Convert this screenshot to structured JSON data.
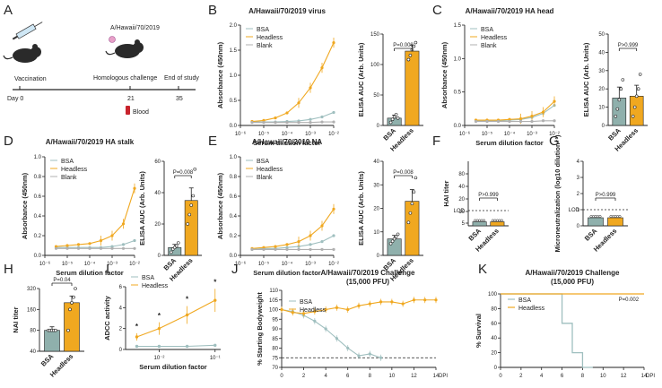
{
  "colors": {
    "headless": "#f0a820",
    "bsa": "#9fbfbf",
    "blank": "#b0b0b0",
    "bsa_bar": "#8fb0ac",
    "red": "#c8232c",
    "black": "#222222"
  },
  "panel_labels": [
    "A",
    "B",
    "C",
    "D",
    "E",
    "F",
    "G",
    "H",
    "I",
    "J",
    "K"
  ],
  "panel_a": {
    "strain": "A/Hawaii/70/2019",
    "steps": [
      "Vaccination",
      "Homologous challenge",
      "End of study"
    ],
    "days": [
      "Day 0",
      "21",
      "35"
    ],
    "blood": "Blood",
    "icons": [
      "syringe-icon",
      "mouse-icon",
      "mouse-icon",
      "blood-tube-icon"
    ]
  },
  "chart_data": [
    {
      "id": "B-line",
      "type": "line",
      "title": "A/Hawaii/70/2019 virus",
      "xlabel": "Serum dilution factor",
      "ylabel": "Absorbance (450nm)",
      "x_exp": [
        -6,
        -5,
        -4,
        -3,
        -2
      ],
      "x_ticks": [
        "10⁻⁶",
        "10⁻⁵",
        "10⁻⁴",
        "10⁻³",
        "10⁻²"
      ],
      "ylim": [
        0,
        2.0
      ],
      "yticks": [
        "0.0",
        "0.5",
        "1.0",
        "1.5",
        "2.0"
      ],
      "legend": [
        "BSA",
        "Headless",
        "Blank"
      ],
      "series": [
        {
          "name": "BSA",
          "x": [
            -5.5,
            -5.0,
            -4.5,
            -4.0,
            -3.5,
            -3.0,
            -2.5,
            -2.0
          ],
          "values": [
            0.07,
            0.07,
            0.07,
            0.08,
            0.09,
            0.12,
            0.17,
            0.26
          ]
        },
        {
          "name": "Headless",
          "x": [
            -5.5,
            -5.0,
            -4.5,
            -4.0,
            -3.5,
            -3.0,
            -2.5,
            -2.0
          ],
          "values": [
            0.08,
            0.1,
            0.15,
            0.25,
            0.45,
            0.75,
            1.15,
            1.65
          ]
        },
        {
          "name": "Blank",
          "x": [
            -5.5,
            -5.0,
            -4.5,
            -4.0,
            -3.5,
            -3.0,
            -2.5,
            -2.0
          ],
          "values": [
            0.06,
            0.06,
            0.06,
            0.06,
            0.06,
            0.06,
            0.07,
            0.07
          ]
        }
      ]
    },
    {
      "id": "B-bar",
      "type": "bar",
      "ylabel": "ELISA AUC (Arb. Units)",
      "categories": [
        "BSA",
        "Headless"
      ],
      "values": [
        12,
        122
      ],
      "errors": [
        5,
        10
      ],
      "ylim": [
        0,
        150
      ],
      "yticks": [
        "0",
        "50",
        "100",
        "150"
      ],
      "pvalue": "P=0.008",
      "points": [
        [
          5,
          10,
          14,
          18,
          12
        ],
        [
          108,
          115,
          124,
          130,
          136
        ]
      ]
    },
    {
      "id": "C-line",
      "type": "line",
      "title": "A/Hawaii/70/2019 HA head",
      "xlabel": "Serum dilution factor",
      "ylabel": "Absorbance (450nm)",
      "x_exp": [
        -6,
        -5,
        -4,
        -3,
        -2
      ],
      "x_ticks": [
        "10⁻⁶",
        "10⁻⁵",
        "10⁻⁴",
        "10⁻³",
        "10⁻²"
      ],
      "ylim": [
        0,
        1.5
      ],
      "yticks": [
        "0.0",
        "0.5",
        "1.0",
        "1.5"
      ],
      "legend": [
        "BSA",
        "Headless",
        "Blank"
      ],
      "series": [
        {
          "name": "BSA",
          "x": [
            -5.5,
            -5.0,
            -4.5,
            -4.0,
            -3.5,
            -3.0,
            -2.5,
            -2.0
          ],
          "values": [
            0.07,
            0.07,
            0.07,
            0.08,
            0.09,
            0.12,
            0.18,
            0.3
          ]
        },
        {
          "name": "Headless",
          "x": [
            -5.5,
            -5.0,
            -4.5,
            -4.0,
            -3.5,
            -3.0,
            -2.5,
            -2.0
          ],
          "values": [
            0.08,
            0.08,
            0.08,
            0.09,
            0.1,
            0.14,
            0.2,
            0.36
          ]
        },
        {
          "name": "Blank",
          "x": [
            -5.5,
            -5.0,
            -4.5,
            -4.0,
            -3.5,
            -3.0,
            -2.5,
            -2.0
          ],
          "values": [
            0.06,
            0.06,
            0.06,
            0.06,
            0.06,
            0.06,
            0.07,
            0.07
          ]
        }
      ]
    },
    {
      "id": "C-bar",
      "type": "bar",
      "ylabel": "ELISA AUC (Arb. Units)",
      "categories": [
        "BSA",
        "Headless"
      ],
      "values": [
        15,
        16
      ],
      "errors": [
        6,
        6
      ],
      "ylim": [
        0,
        50
      ],
      "yticks": [
        "0",
        "10",
        "20",
        "30",
        "40",
        "50"
      ],
      "pvalue": "P>0.999",
      "points": [
        [
          5,
          9,
          14,
          20,
          25
        ],
        [
          5,
          10,
          16,
          20,
          28
        ]
      ]
    },
    {
      "id": "D-line",
      "type": "line",
      "title": "A/Hawaii/70/2019 HA stalk",
      "xlabel": "Serum dilution factor",
      "ylabel": "Absorbance (450nm)",
      "x_exp": [
        -6,
        -5,
        -4,
        -3,
        -2
      ],
      "x_ticks": [
        "10⁻⁶",
        "10⁻⁵",
        "10⁻⁴",
        "10⁻³",
        "10⁻²"
      ],
      "ylim": [
        0,
        1.0
      ],
      "yticks": [
        "0.0",
        "0.2",
        "0.4",
        "0.6",
        "0.8",
        "1.0"
      ],
      "legend": [
        "BSA",
        "Headless",
        "Blank"
      ],
      "series": [
        {
          "name": "BSA",
          "x": [
            -5.5,
            -5.0,
            -4.5,
            -4.0,
            -3.5,
            -3.0,
            -2.5,
            -2.0
          ],
          "values": [
            0.08,
            0.08,
            0.08,
            0.08,
            0.08,
            0.09,
            0.11,
            0.15
          ]
        },
        {
          "name": "Headless",
          "x": [
            -5.5,
            -5.0,
            -4.5,
            -4.0,
            -3.5,
            -3.0,
            -2.5,
            -2.0
          ],
          "values": [
            0.09,
            0.1,
            0.11,
            0.12,
            0.15,
            0.2,
            0.32,
            0.68
          ]
        },
        {
          "name": "Blank",
          "x": [
            -5.5,
            -5.0,
            -4.5,
            -4.0,
            -3.5,
            -3.0,
            -2.5,
            -2.0
          ],
          "values": [
            0.07,
            0.07,
            0.07,
            0.07,
            0.07,
            0.07,
            0.07,
            0.07
          ]
        }
      ]
    },
    {
      "id": "D-bar",
      "type": "bar",
      "ylabel": "ELISA AUC (Arb. Units)",
      "categories": [
        "BSA",
        "Headless"
      ],
      "values": [
        5,
        35
      ],
      "errors": [
        2,
        8
      ],
      "ylim": [
        0,
        60
      ],
      "yticks": [
        "0",
        "20",
        "40",
        "60"
      ],
      "pvalue": "P=0.008",
      "points": [
        [
          2,
          4,
          5,
          6,
          8
        ],
        [
          20,
          26,
          32,
          38,
          55
        ]
      ]
    },
    {
      "id": "E-line",
      "type": "line",
      "title": "A/Hawaii/70/2019 NA",
      "xlabel": "Serum dilution factor",
      "ylabel": "Absorbance (450nm)",
      "x_exp": [
        -6,
        -5,
        -4,
        -3,
        -2
      ],
      "x_ticks": [
        "10⁻⁶",
        "10⁻⁵",
        "10⁻⁴",
        "10⁻³",
        "10⁻²"
      ],
      "ylim": [
        0,
        1.0
      ],
      "yticks": [
        "0.0",
        "0.2",
        "0.4",
        "0.6",
        "0.8",
        "1.0"
      ],
      "legend": [
        "BSA",
        "Headless",
        "Blank"
      ],
      "series": [
        {
          "name": "BSA",
          "x": [
            -5.5,
            -5.0,
            -4.5,
            -4.0,
            -3.5,
            -3.0,
            -2.5,
            -2.0
          ],
          "values": [
            0.06,
            0.07,
            0.07,
            0.08,
            0.09,
            0.11,
            0.14,
            0.2
          ]
        },
        {
          "name": "Headless",
          "x": [
            -5.5,
            -5.0,
            -4.5,
            -4.0,
            -3.5,
            -3.0,
            -2.5,
            -2.0
          ],
          "values": [
            0.07,
            0.08,
            0.09,
            0.11,
            0.14,
            0.2,
            0.3,
            0.47
          ]
        },
        {
          "name": "Blank",
          "x": [
            -5.5,
            -5.0,
            -4.5,
            -4.0,
            -3.5,
            -3.0,
            -2.5,
            -2.0
          ],
          "values": [
            0.06,
            0.06,
            0.06,
            0.06,
            0.06,
            0.06,
            0.06,
            0.06
          ]
        }
      ]
    },
    {
      "id": "E-bar",
      "type": "bar",
      "ylabel": "ELISA AUC (Arb. Units)",
      "categories": [
        "BSA",
        "Headless"
      ],
      "values": [
        7,
        23
      ],
      "errors": [
        1.5,
        5
      ],
      "ylim": [
        0,
        40
      ],
      "yticks": [
        "0",
        "10",
        "20",
        "30",
        "40"
      ],
      "pvalue": "P=0.008",
      "points": [
        [
          5,
          6,
          7,
          8,
          9
        ],
        [
          14,
          18,
          22,
          27,
          33
        ]
      ]
    },
    {
      "id": "F",
      "type": "bar",
      "ylabel": "HAI titer",
      "categories": [
        "BSA",
        "Headless"
      ],
      "values": [
        5,
        5
      ],
      "errors": [
        0,
        0
      ],
      "ylim": [
        0,
        80
      ],
      "yticks": [
        "5",
        "10",
        "20",
        "40",
        "80"
      ],
      "pvalue": "P>0.999",
      "lod": "LOD"
    },
    {
      "id": "G",
      "type": "bar",
      "ylabel": "Microneutralization (log10 dilution⁻¹)",
      "categories": [
        "BSA",
        "Headless"
      ],
      "values": [
        0.5,
        0.5
      ],
      "errors": [
        0,
        0
      ],
      "ylim": [
        0,
        4
      ],
      "yticks": [
        "0",
        "1",
        "2",
        "3",
        "4"
      ],
      "pvalue": "P>0.999",
      "lod": "LOD"
    },
    {
      "id": "H",
      "type": "bar",
      "ylabel": "NAI titer",
      "categories": [
        "BSA",
        "Headless"
      ],
      "values": [
        80,
        200
      ],
      "errors": [
        10,
        50
      ],
      "ylim": [
        40,
        320
      ],
      "yticks": [
        "40",
        "80",
        "160",
        "320"
      ],
      "pvalue": "P=0.04",
      "points": [
        [
          80,
          80,
          80,
          80,
          80
        ],
        [
          80,
          160,
          200,
          240,
          320
        ]
      ]
    },
    {
      "id": "I",
      "type": "line",
      "xlabel": "Serum dilution factor",
      "ylabel": "ADCC activity",
      "x_ticks": [
        "10⁻²",
        "10⁻¹"
      ],
      "ylim": [
        0,
        6
      ],
      "yticks": [
        "0",
        "2",
        "4",
        "6"
      ],
      "legend": [
        "BSA",
        "Headless"
      ],
      "series": [
        {
          "name": "BSA",
          "x": [
            -2.4,
            -2.0,
            -1.5,
            -1.0
          ],
          "values": [
            0.3,
            0.3,
            0.3,
            0.4
          ]
        },
        {
          "name": "Headless",
          "x": [
            -2.4,
            -2.0,
            -1.5,
            -1.0
          ],
          "values": [
            1.2,
            2.0,
            3.3,
            4.7
          ]
        }
      ],
      "annotations": [
        "*",
        "*",
        "*",
        "*"
      ]
    },
    {
      "id": "J",
      "type": "line",
      "title": "A/Hawaii/70/2019 Challenge",
      "subtitle": "(15,000 PFU)",
      "xlabel": "DPI",
      "ylabel": "% Starting Bodyweight",
      "xlim": [
        0,
        14
      ],
      "xticks": [
        "0",
        "2",
        "4",
        "6",
        "8",
        "10",
        "12",
        "14"
      ],
      "ylim": [
        70,
        110
      ],
      "yticks": [
        "70",
        "75",
        "80",
        "85",
        "90",
        "95",
        "100",
        "105",
        "110"
      ],
      "threshold": 75,
      "legend": [
        "BSA",
        "Headless"
      ],
      "series": [
        {
          "name": "BSA",
          "x": [
            0,
            1,
            2,
            3,
            4,
            5,
            6,
            7,
            8,
            9
          ],
          "values": [
            100,
            99,
            97,
            94,
            90,
            85,
            80,
            76,
            77,
            75
          ]
        },
        {
          "name": "Headless",
          "x": [
            0,
            1,
            2,
            3,
            4,
            5,
            6,
            7,
            8,
            9,
            10,
            11,
            12,
            13,
            14
          ],
          "values": [
            100,
            98.5,
            98,
            99,
            100,
            101,
            100,
            102,
            103,
            104,
            104,
            103,
            105,
            105,
            105
          ]
        }
      ]
    },
    {
      "id": "K",
      "type": "line",
      "title": "A/Hawaii/70/2019 Challenge",
      "subtitle": "(15,000 PFU)",
      "xlabel": "DPI",
      "ylabel": "% Survival",
      "xlim": [
        0,
        14
      ],
      "xticks": [
        "0",
        "2",
        "4",
        "6",
        "8",
        "10",
        "12",
        "14"
      ],
      "ylim": [
        0,
        100
      ],
      "yticks": [
        "0",
        "20",
        "40",
        "60",
        "80",
        "100"
      ],
      "pvalue": "P=0.002",
      "legend": [
        "BSA",
        "Headless"
      ],
      "series": [
        {
          "name": "BSA",
          "x": [
            0,
            6,
            6,
            7,
            7,
            8,
            8,
            9,
            9
          ],
          "values": [
            100,
            100,
            60,
            60,
            20,
            20,
            0,
            0,
            0
          ]
        },
        {
          "name": "Headless",
          "x": [
            0,
            14
          ],
          "values": [
            100,
            100
          ]
        }
      ]
    }
  ]
}
